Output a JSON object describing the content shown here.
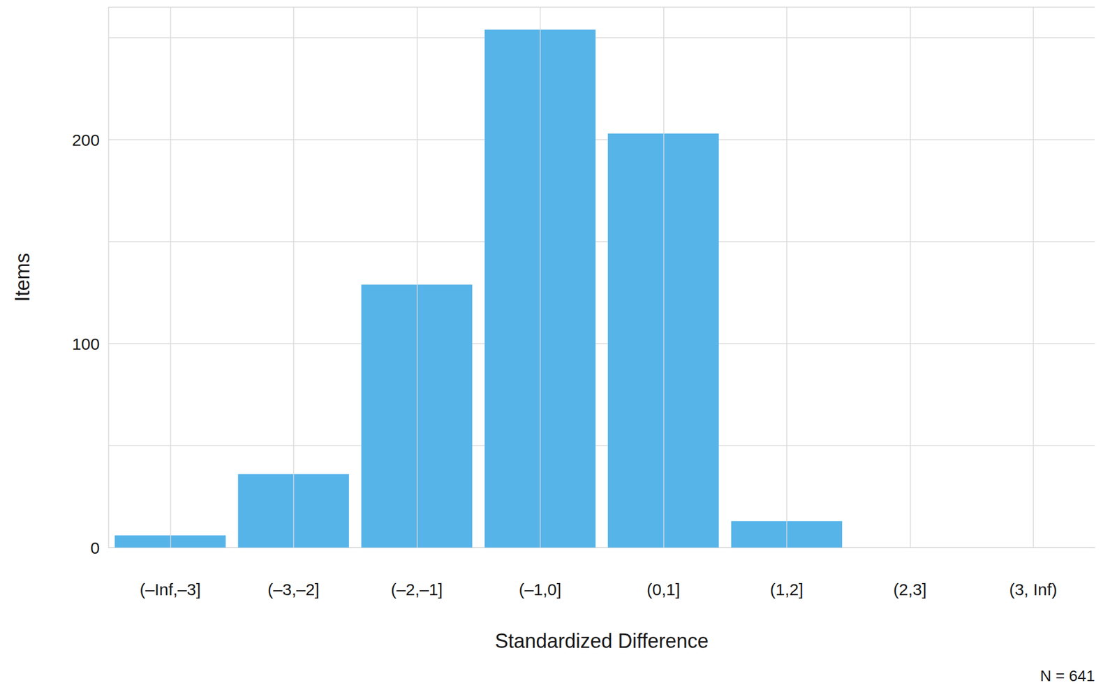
{
  "chart_data": {
    "type": "bar",
    "categories": [
      "(–Inf,–3]",
      "(–3,–2]",
      "(–2,–1]",
      "(–1,0]",
      "(0,1]",
      "(1,2]",
      "(2,3]",
      "(3, Inf)"
    ],
    "values": [
      6,
      36,
      129,
      254,
      203,
      13,
      0,
      0
    ],
    "color": "#56b4e9",
    "xlabel": "Standardized Difference",
    "ylabel": "Items",
    "ylim": [
      0,
      265
    ],
    "yticks": [
      0,
      100,
      200
    ],
    "grid": true,
    "annotation": "N = 641"
  }
}
